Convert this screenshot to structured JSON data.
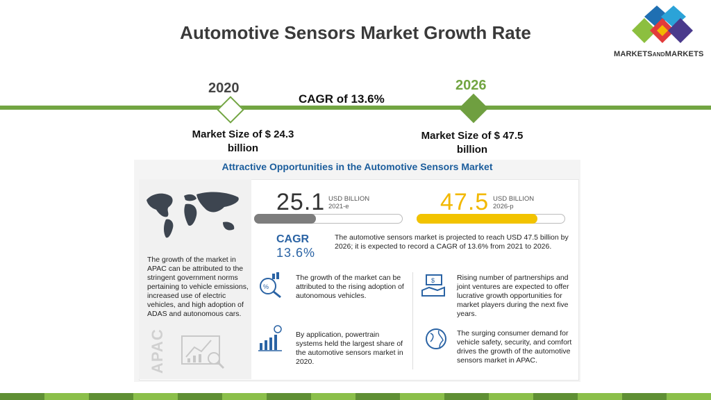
{
  "header": {
    "title": "Automotive Sensors Market Growth Rate"
  },
  "logo": {
    "text_main": "MARKETS",
    "text_and": "AND",
    "text_end": "MARKETS"
  },
  "timeline": {
    "start_year": "2020",
    "end_year": "2026",
    "cagr_label": "CAGR of 13.6%",
    "start_size": "Market Size of $ 24.3 billion",
    "end_size": "Market Size of $ 47.5 billion"
  },
  "panel": {
    "title": "Attractive Opportunities in the Automotive Sensors Market",
    "value_2021": "25.1",
    "unit_2021_line1": "USD BILLION",
    "unit_2021_line2": "2021-e",
    "value_2026": "47.5",
    "unit_2026_line1": "USD BILLION",
    "unit_2026_line2": "2026-p",
    "bar_2021_fraction": 0.42,
    "bar_2026_fraction": 0.82,
    "cagr_word": "CAGR",
    "cagr_value": "13.6%",
    "projection_text": "The automotive sensors market is projected to reach USD 47.5 billion by 2026; it is expected to record a CAGR of 13.6% from 2021 to 2026.",
    "apac_text": "The growth of the market in APAC can be attributed to the stringent government norms pertaining to vehicle emissions, increased use of electric vehicles, and high adoption of ADAS and autonomous cars.",
    "apac_label": "APAC",
    "insight_1": "The growth of the market can be attributed to the rising adoption of autonomous vehicles.",
    "insight_2": "Rising number of partnerships and joint ventures are expected to offer lucrative growth opportunities for market players during the next five years.",
    "insight_3": "By application, powertrain systems held the largest share of the automotive sensors market in 2020.",
    "insight_4": "The surging consumer demand for vehicle safety, security, and comfort drives the growth of the automotive sensors market in APAC."
  },
  "colors": {
    "green": "#72a542",
    "yellow": "#f2c300",
    "blue": "#1b5d9c",
    "footer": [
      "#5f8f34",
      "#8bbf4a",
      "#5f8f34",
      "#8bbf4a",
      "#5f8f34",
      "#8bbf4a",
      "#5f8f34",
      "#8bbf4a",
      "#5f8f34",
      "#8bbf4a",
      "#5f8f34",
      "#8bbf4a",
      "#5f8f34",
      "#8bbf4a",
      "#5f8f34",
      "#8bbf4a"
    ]
  }
}
